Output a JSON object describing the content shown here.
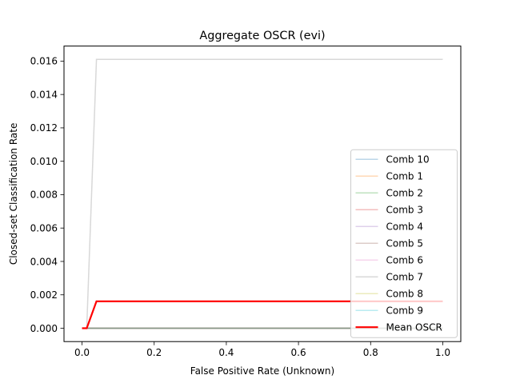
{
  "chart_data": {
    "type": "line",
    "title": "Aggregate OSCR (evi)",
    "xlabel": "False Positive Rate (Unknown)",
    "ylabel": "Closed-set Classification Rate",
    "xlim": [
      -0.05,
      1.05
    ],
    "ylim": [
      -0.0008,
      0.0169
    ],
    "xticks": [
      0.0,
      0.2,
      0.4,
      0.6,
      0.8,
      1.0
    ],
    "xtick_labels": [
      "0.0",
      "0.2",
      "0.4",
      "0.6",
      "0.8",
      "1.0"
    ],
    "yticks": [
      0.0,
      0.002,
      0.004,
      0.006,
      0.008,
      0.01,
      0.012,
      0.014,
      0.016
    ],
    "ytick_labels": [
      "0.000",
      "0.002",
      "0.004",
      "0.006",
      "0.008",
      "0.010",
      "0.012",
      "0.014",
      "0.016"
    ],
    "grid": false,
    "legend_position": "lower right",
    "series": [
      {
        "name": "Comb 10",
        "color": "#1f77b4",
        "alpha": 0.3,
        "width": 1.5,
        "x": [
          0.0,
          1.0
        ],
        "y": [
          0.0,
          0.0
        ]
      },
      {
        "name": "Comb 1",
        "color": "#ff7f0e",
        "alpha": 0.3,
        "width": 1.5,
        "x": [
          0.0,
          1.0
        ],
        "y": [
          0.0,
          0.0
        ]
      },
      {
        "name": "Comb 2",
        "color": "#2ca02c",
        "alpha": 0.3,
        "width": 1.5,
        "x": [
          0.0,
          1.0
        ],
        "y": [
          0.0,
          0.0
        ]
      },
      {
        "name": "Comb 3",
        "color": "#d62728",
        "alpha": 0.3,
        "width": 1.5,
        "x": [
          0.0,
          1.0
        ],
        "y": [
          0.0,
          0.0
        ]
      },
      {
        "name": "Comb 4",
        "color": "#9467bd",
        "alpha": 0.3,
        "width": 1.5,
        "x": [
          0.0,
          1.0
        ],
        "y": [
          0.0,
          0.0
        ]
      },
      {
        "name": "Comb 5",
        "color": "#8c564b",
        "alpha": 0.3,
        "width": 1.5,
        "x": [
          0.0,
          1.0
        ],
        "y": [
          0.0,
          0.0
        ]
      },
      {
        "name": "Comb 6",
        "color": "#e377c2",
        "alpha": 0.3,
        "width": 1.5,
        "x": [
          0.0,
          1.0
        ],
        "y": [
          0.0,
          0.0
        ]
      },
      {
        "name": "Comb 7",
        "color": "#7f7f7f",
        "alpha": 0.3,
        "width": 1.5,
        "x": [
          0.0,
          0.013,
          0.04,
          1.0
        ],
        "y": [
          0.0,
          0.0,
          0.0161,
          0.0161
        ]
      },
      {
        "name": "Comb 8",
        "color": "#bcbd22",
        "alpha": 0.3,
        "width": 1.5,
        "x": [
          0.0,
          1.0
        ],
        "y": [
          0.0,
          0.0
        ]
      },
      {
        "name": "Comb 9",
        "color": "#17becf",
        "alpha": 0.3,
        "width": 1.5,
        "x": [
          0.0,
          1.0
        ],
        "y": [
          0.0,
          0.0
        ]
      },
      {
        "name": "Mean OSCR",
        "color": "#ff0000",
        "alpha": 1.0,
        "width": 2.2,
        "x": [
          0.0,
          0.013,
          0.04,
          1.0
        ],
        "y": [
          0.0,
          0.0,
          0.00161,
          0.00161
        ]
      }
    ]
  }
}
